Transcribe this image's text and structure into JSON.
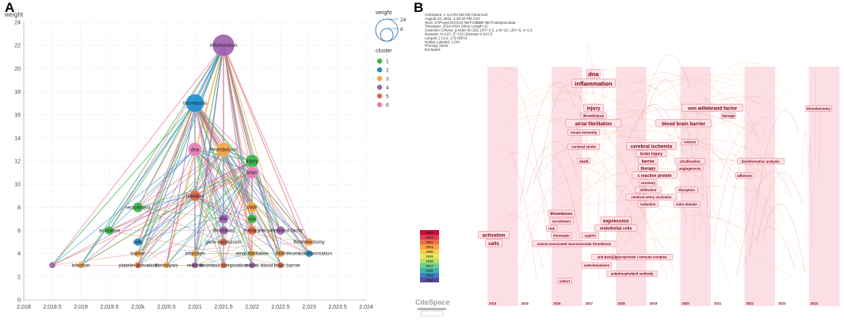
{
  "panel_a": {
    "letter": "A"
  },
  "panel_b": {
    "letter": "B"
  },
  "chart_data": [
    {
      "type": "scatter",
      "title": "",
      "xlabel": "",
      "ylabel": "weight",
      "xlim": [
        2018,
        2024
      ],
      "ylim": [
        0,
        24
      ],
      "x_ticks": [
        "2,018",
        "2,018.5",
        "2,019",
        "2,019.5",
        "2,02k",
        "2,020.5",
        "2,021",
        "2,021.5",
        "2,022",
        "2,022.5",
        "2,023",
        "2,023.5",
        "2,024"
      ],
      "y_ticks": [
        "0",
        "2",
        "4",
        "6",
        "8",
        "10",
        "12",
        "14",
        "16",
        "18",
        "20",
        "22",
        "24"
      ],
      "grid": true,
      "legend": {
        "size_title": "weight",
        "size_values": [
          "24",
          "8"
        ],
        "cluster_title": "cluster",
        "clusters": [
          {
            "id": "1",
            "color": "#3cb54a"
          },
          {
            "id": "2",
            "color": "#1f8fcf"
          },
          {
            "id": "3",
            "color": "#f7a541"
          },
          {
            "id": "4",
            "color": "#a061b0"
          },
          {
            "id": "5",
            "color": "#e06645"
          },
          {
            "id": "6",
            "color": "#e87fb4"
          }
        ]
      },
      "nodes": [
        {
          "label": "inflammation",
          "x": 2021.5,
          "y": 22,
          "weight": 24,
          "cluster": 4
        },
        {
          "label": "thrombosis",
          "x": 2021,
          "y": 17,
          "weight": 19,
          "cluster": 2
        },
        {
          "label": "dna",
          "x": 2021,
          "y": 13,
          "weight": 13,
          "cluster": 6
        },
        {
          "label": "thrombolysis",
          "x": 2021.5,
          "y": 13,
          "weight": 13,
          "cluster": 3
        },
        {
          "label": "injury",
          "x": 2022,
          "y": 12,
          "weight": 12,
          "cluster": 1
        },
        {
          "label": "brain",
          "x": 2022,
          "y": 11,
          "weight": 11,
          "cluster": 6
        },
        {
          "label": "platelets",
          "x": 2021,
          "y": 9,
          "weight": 9,
          "cluster": 5
        },
        {
          "label": "recruitment",
          "x": 2020,
          "y": 8,
          "weight": 8,
          "cluster": 1
        },
        {
          "label": "VWF",
          "x": 2022,
          "y": 8,
          "weight": 8,
          "cluster": 3
        },
        {
          "label": "risk",
          "x": 2022,
          "y": 7,
          "weight": 7,
          "cluster": 1
        },
        {
          "label": "tPA",
          "x": 2021.5,
          "y": 7,
          "weight": 7,
          "cluster": 4
        },
        {
          "label": "activation",
          "x": 2019.5,
          "y": 6,
          "weight": 6,
          "cluster": 1
        },
        {
          "label": "thrombus",
          "x": 2021.5,
          "y": 6,
          "weight": 6,
          "cluster": 4
        },
        {
          "label": "therapy",
          "x": 2022,
          "y": 6,
          "weight": 6,
          "cluster": 5
        },
        {
          "label": "von willebrand factor",
          "x": 2022.5,
          "y": 6,
          "weight": 6,
          "cluster": 4
        },
        {
          "label": "cells",
          "x": 2020,
          "y": 5,
          "weight": 5,
          "cluster": 2
        },
        {
          "label": "gene expression",
          "x": 2021.5,
          "y": 5,
          "weight": 5,
          "cluster": 5
        },
        {
          "label": "thrombectomy",
          "x": 2023,
          "y": 5,
          "weight": 5,
          "cluster": 3
        },
        {
          "label": "barrier",
          "x": 2020,
          "y": 4,
          "weight": 4,
          "cluster": 3
        },
        {
          "label": "infarction",
          "x": 2021,
          "y": 4,
          "weight": 4,
          "cluster": 3
        },
        {
          "label": "atrial fibrillation",
          "x": 2022,
          "y": 4,
          "weight": 4,
          "cluster": 3
        },
        {
          "label": "BBB",
          "x": 2022.5,
          "y": 4,
          "weight": 4,
          "cluster": 3
        },
        {
          "label": "thromboinflammation",
          "x": 2023,
          "y": 4,
          "weight": 4,
          "cluster": 2
        },
        {
          "label": "",
          "x": 2018.5,
          "y": 3,
          "weight": 3,
          "cluster": 4
        },
        {
          "label": "infection",
          "x": 2019,
          "y": 3,
          "weight": 3,
          "cluster": 3
        },
        {
          "label": "platelet activation",
          "x": 2020,
          "y": 3,
          "weight": 3,
          "cluster": 5
        },
        {
          "label": "fibrinolysis",
          "x": 2020.5,
          "y": 3,
          "weight": 3,
          "cluster": 3
        },
        {
          "label": "release",
          "x": 2021,
          "y": 3,
          "weight": 3,
          "cluster": 4
        },
        {
          "label": "thrombus composition",
          "x": 2021.5,
          "y": 3,
          "weight": 3,
          "cluster": 5
        },
        {
          "label": "model",
          "x": 2022,
          "y": 3,
          "weight": 3,
          "cluster": 4
        },
        {
          "label": "blood brain barrier",
          "x": 2022.5,
          "y": 3,
          "weight": 3,
          "cluster": 5
        }
      ],
      "edge_hubs": [
        "inflammation",
        "thrombosis",
        "dna",
        "thrombolysis",
        "injury",
        "brain",
        "platelets"
      ]
    },
    {
      "type": "timeline",
      "title": "CiteSpace timezone view",
      "header_lines": [
        "CiteSpace, v. 6.3.R3 (64-bit) Advanced",
        "August 23, 2024, 4:30:32 PM CST",
        "WoS: D:\\Project\\COCIS-NET\\citBBB-NET\\citespacedata",
        "Timespan: 2014-2024 (Slice Length=1)",
        "Selection Criteria: g-index (k=25), LRF=2.5, L/N=10, LBY=5, e=1.0",
        "Network: N=187, E=725 (Density=0.0417)",
        "Largest 1 CCs: 179 (95%)",
        "Nodes Labeled: 1.0%",
        "Pruning: None",
        "Excluded:"
      ],
      "years": [
        "2014",
        "2015",
        "2016",
        "2017",
        "2018",
        "2019",
        "2020",
        "2021",
        "2022",
        "2023",
        "2024"
      ],
      "keywords": [
        {
          "label": "dna",
          "year": 2017.3,
          "row": 0.04,
          "size": 3
        },
        {
          "label": "inflammation",
          "year": 2017.3,
          "row": 0.08,
          "size": 3
        },
        {
          "label": "injury",
          "year": 2017.3,
          "row": 0.18,
          "size": 2
        },
        {
          "label": "thrombolysis",
          "year": 2017.3,
          "row": 0.21,
          "size": 1
        },
        {
          "label": "atrial fibrillation",
          "year": 2017.3,
          "row": 0.245,
          "size": 2
        },
        {
          "label": "innate immunity",
          "year": 2017.0,
          "row": 0.28,
          "size": 1
        },
        {
          "label": "von willebrand factor",
          "year": 2021.0,
          "row": 0.18,
          "size": 2
        },
        {
          "label": "damage",
          "year": 2021.5,
          "row": 0.21,
          "size": 1
        },
        {
          "label": "thrombectomy",
          "year": 2024.3,
          "row": 0.18,
          "size": 1
        },
        {
          "label": "blood brain barrier",
          "year": 2020.1,
          "row": 0.245,
          "size": 2
        },
        {
          "label": "cerebral ischemia",
          "year": 2019.1,
          "row": 0.34,
          "size": 2
        },
        {
          "label": "cerebral stroke",
          "year": 2017.0,
          "row": 0.34,
          "size": 1
        },
        {
          "label": "brain injury",
          "year": 2019.1,
          "row": 0.37,
          "size": 1.5
        },
        {
          "label": "netosis",
          "year": 2020.3,
          "row": 0.32,
          "size": 1
        },
        {
          "label": "death",
          "year": 2017.0,
          "row": 0.4,
          "size": 1
        },
        {
          "label": "barrier",
          "year": 2019.0,
          "row": 0.4,
          "size": 1.5
        },
        {
          "label": "citrullination",
          "year": 2020.3,
          "row": 0.4,
          "size": 1
        },
        {
          "label": "therapy",
          "year": 2019.0,
          "row": 0.43,
          "size": 1.5
        },
        {
          "label": "angiogenesis",
          "year": 2020.3,
          "row": 0.43,
          "size": 1
        },
        {
          "label": "bioinformatics analysis",
          "year": 2022.5,
          "row": 0.4,
          "size": 1
        },
        {
          "label": "c reactive protein",
          "year": 2019.2,
          "row": 0.46,
          "size": 1.5
        },
        {
          "label": "adhesion",
          "year": 2022.0,
          "row": 0.46,
          "size": 1
        },
        {
          "label": "coronary",
          "year": 2019.0,
          "row": 0.49,
          "size": 1
        },
        {
          "label": "infiltration",
          "year": 2019.0,
          "row": 0.52,
          "size": 1
        },
        {
          "label": "disruption",
          "year": 2020.2,
          "row": 0.52,
          "size": 1
        },
        {
          "label": "cerebral artery occlusion",
          "year": 2019.1,
          "row": 0.55,
          "size": 1
        },
        {
          "label": "induction",
          "year": 2019.0,
          "row": 0.58,
          "size": 1
        },
        {
          "label": "extra domain",
          "year": 2020.2,
          "row": 0.58,
          "size": 1
        },
        {
          "label": "thrombosis",
          "year": 2016.3,
          "row": 0.62,
          "size": 1.5
        },
        {
          "label": "recruitment",
          "year": 2016.3,
          "row": 0.65,
          "size": 1
        },
        {
          "label": "expression",
          "year": 2018.0,
          "row": 0.65,
          "size": 2
        },
        {
          "label": "risk",
          "year": 2016.0,
          "row": 0.68,
          "size": 1
        },
        {
          "label": "endothelial cells",
          "year": 2018.0,
          "row": 0.68,
          "size": 1.5
        },
        {
          "label": "chromatin",
          "year": 2016.3,
          "row": 0.71,
          "size": 1
        },
        {
          "label": "aspirin",
          "year": 2017.2,
          "row": 0.71,
          "size": 1
        },
        {
          "label": "cancer-associated macrovascular thrombosis",
          "year": 2016.7,
          "row": 0.745,
          "size": 1
        },
        {
          "label": "activation",
          "year": 2014.2,
          "row": 0.71,
          "size": 2
        },
        {
          "label": "cells",
          "year": 2014.2,
          "row": 0.745,
          "size": 2
        },
        {
          "label": "anti-beta(2)glycoprotein i immune complex",
          "year": 2018.5,
          "row": 0.8,
          "size": 1
        },
        {
          "label": "catecholamines",
          "year": 2017.4,
          "row": 0.835,
          "size": 1
        },
        {
          "label": "antiphospholipid antibody",
          "year": 2018.5,
          "row": 0.87,
          "size": 1
        },
        {
          "label": "cohort",
          "year": 2016.4,
          "row": 0.9,
          "size": 1
        }
      ],
      "slider_years": [
        "2024",
        "2023",
        "2022",
        "2021",
        "2020",
        "2019",
        "2018",
        "2017",
        "2016",
        "2015",
        "2014"
      ],
      "logo": "CiteSpace"
    }
  ]
}
